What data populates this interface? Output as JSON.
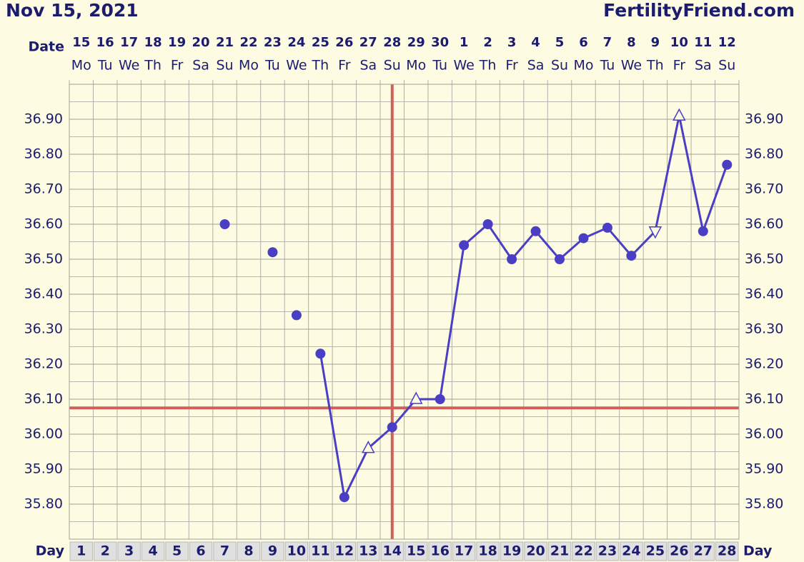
{
  "header": {
    "title": "Nov 15, 2021",
    "brand": "FertilityFriend.com"
  },
  "chart_data": {
    "type": "line",
    "date_label": "Date",
    "day_label": "Day",
    "dates": [
      15,
      16,
      17,
      18,
      19,
      20,
      21,
      22,
      23,
      24,
      25,
      26,
      27,
      28,
      29,
      30,
      1,
      2,
      3,
      4,
      5,
      6,
      7,
      8,
      9,
      10,
      11,
      12
    ],
    "weekdays": [
      "Mo",
      "Tu",
      "We",
      "Th",
      "Fr",
      "Sa",
      "Su",
      "Mo",
      "Tu",
      "We",
      "Th",
      "Fr",
      "Sa",
      "Su",
      "Mo",
      "Tu",
      "We",
      "Th",
      "Fr",
      "Sa",
      "Su",
      "Mo",
      "Tu",
      "We",
      "Th",
      "Fr",
      "Sa",
      "Su"
    ],
    "x": [
      1,
      2,
      3,
      4,
      5,
      6,
      7,
      8,
      9,
      10,
      11,
      12,
      13,
      14,
      15,
      16,
      17,
      18,
      19,
      20,
      21,
      22,
      23,
      24,
      25,
      26,
      27,
      28
    ],
    "xlim": [
      0.5,
      28.5
    ],
    "ylim": [
      35.7,
      37.0
    ],
    "yticks": [
      {
        "value": 35.8,
        "label": "35.80"
      },
      {
        "value": 35.9,
        "label": "35.90"
      },
      {
        "value": 36.0,
        "label": "36.00"
      },
      {
        "value": 36.1,
        "label": "36.10"
      },
      {
        "value": 36.2,
        "label": "36.20"
      },
      {
        "value": 36.3,
        "label": "36.30"
      },
      {
        "value": 36.4,
        "label": "36.40"
      },
      {
        "value": 36.5,
        "label": "36.50"
      },
      {
        "value": 36.6,
        "label": "36.60"
      },
      {
        "value": 36.7,
        "label": "36.70"
      },
      {
        "value": 36.8,
        "label": "36.80"
      },
      {
        "value": 36.9,
        "label": "36.90"
      }
    ],
    "grid": true,
    "series": [
      {
        "color": "#4a3fc4",
        "line": false,
        "values": [
          null,
          null,
          null,
          null,
          null,
          null,
          36.6,
          null,
          36.52,
          36.34,
          null,
          null,
          null,
          null,
          null,
          null,
          null,
          null,
          null,
          null,
          null,
          null,
          null,
          null,
          null,
          null,
          null,
          null
        ],
        "markers": [
          null,
          null,
          null,
          null,
          null,
          null,
          "dot",
          null,
          "dot",
          "dot",
          null,
          null,
          null,
          null,
          null,
          null,
          null,
          null,
          null,
          null,
          null,
          null,
          null,
          null,
          null,
          null,
          null,
          null
        ]
      },
      {
        "color": "#4a3fc4",
        "line": true,
        "values": [
          null,
          null,
          null,
          null,
          null,
          null,
          null,
          null,
          null,
          null,
          36.23,
          35.82,
          35.96,
          36.02,
          36.1,
          36.1,
          36.54,
          36.6,
          36.5,
          36.58,
          36.5,
          36.56,
          36.59,
          36.51,
          36.58,
          36.91,
          36.58,
          36.77
        ],
        "markers": [
          null,
          null,
          null,
          null,
          null,
          null,
          null,
          null,
          null,
          null,
          "dot",
          "dot",
          "triangle-up",
          "dot",
          "triangle-up",
          "dot",
          "dot",
          "dot",
          "dot",
          "dot",
          "dot",
          "dot",
          "dot",
          "dot",
          "triangle-down",
          "triangle-up",
          "dot",
          "dot"
        ]
      }
    ],
    "coverline": 36.075,
    "ovulation_day": 14,
    "reference_color": "#d0605a"
  }
}
